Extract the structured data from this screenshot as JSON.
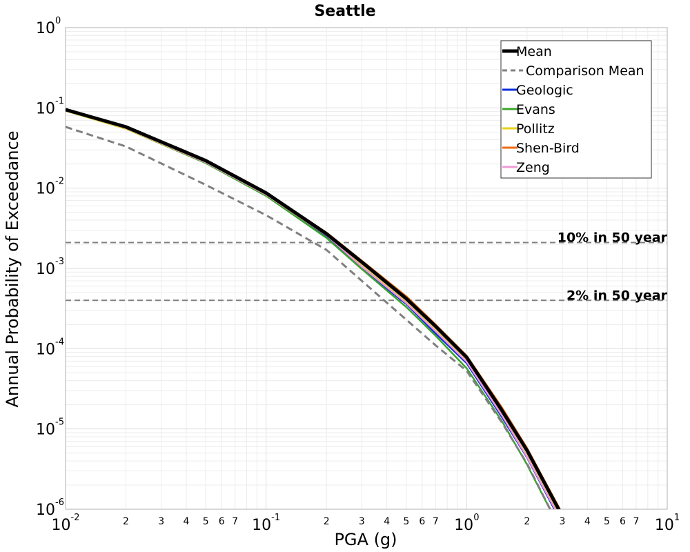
{
  "chart_data": {
    "type": "line",
    "title": "Seattle",
    "xlabel": "PGA (g)",
    "ylabel": "Annual Probability of Exceedance",
    "xscale": "log",
    "yscale": "log",
    "xlim": [
      0.01,
      10
    ],
    "ylim": [
      1e-06,
      1
    ],
    "grid": true,
    "legend_position": "top-right",
    "x_major_ticks": [
      {
        "base": "10",
        "exp": "-2"
      },
      {
        "base": "10",
        "exp": "-1"
      },
      {
        "base": "10",
        "exp": "0"
      },
      {
        "base": "10",
        "exp": "1"
      }
    ],
    "y_major_ticks": [
      {
        "base": "10",
        "exp": "0"
      },
      {
        "base": "10",
        "exp": "-1"
      },
      {
        "base": "10",
        "exp": "-2"
      },
      {
        "base": "10",
        "exp": "-3"
      },
      {
        "base": "10",
        "exp": "-4"
      },
      {
        "base": "10",
        "exp": "-5"
      },
      {
        "base": "10",
        "exp": "-6"
      }
    ],
    "x_minor_tick_labels": [
      "2",
      "3",
      "4",
      "5",
      "6",
      "7"
    ],
    "x": [
      0.01,
      0.02,
      0.05,
      0.1,
      0.2,
      0.3,
      0.5,
      0.7,
      1.0,
      1.5,
      2.0,
      3.0
    ],
    "series": [
      {
        "name": "Mean",
        "color": "#000000",
        "style": "solid",
        "width": 5,
        "values": [
          0.095,
          0.058,
          0.022,
          0.0087,
          0.0027,
          0.0012,
          0.00042,
          0.00019,
          7.8e-05,
          1.7e-05,
          5.4e-06,
          8.2e-07
        ]
      },
      {
        "name": "Comparison Mean",
        "color": "#808080",
        "style": "dashed",
        "width": 3,
        "values": [
          0.058,
          0.033,
          0.011,
          0.0046,
          0.0017,
          0.0007,
          0.00023,
          0.00011,
          5.3e-05,
          1.2e-05,
          3.7e-06,
          5e-07
        ]
      },
      {
        "name": "Geologic",
        "color": "#0a2bdc",
        "style": "solid",
        "width": 2.5,
        "values": [
          0.093,
          0.056,
          0.021,
          0.0082,
          0.0025,
          0.001,
          0.00036,
          0.000155,
          6.6e-05,
          1.4e-05,
          4.4e-06,
          6.5e-07
        ]
      },
      {
        "name": "Evans",
        "color": "#3aa52a",
        "style": "solid",
        "width": 2.5,
        "values": [
          0.092,
          0.055,
          0.0205,
          0.008,
          0.0024,
          0.00098,
          0.00033,
          0.000145,
          5.7e-05,
          1.25e-05,
          3.6e-06,
          5e-07
        ]
      },
      {
        "name": "Pollitz",
        "color": "#e8d21a",
        "style": "solid",
        "width": 2.5,
        "values": [
          0.092,
          0.055,
          0.021,
          0.0083,
          0.0026,
          0.00108,
          0.00038,
          0.00017,
          7e-05,
          1.5e-05,
          4.6e-06,
          7e-07
        ]
      },
      {
        "name": "Shen-Bird",
        "color": "#ee6a14",
        "style": "solid",
        "width": 2.5,
        "values": [
          0.095,
          0.058,
          0.022,
          0.0088,
          0.0028,
          0.00125,
          0.00045,
          0.0002,
          8.2e-05,
          1.85e-05,
          5.8e-06,
          8.8e-07
        ]
      },
      {
        "name": "Zeng",
        "color": "#f09ad8",
        "style": "solid",
        "width": 2.5,
        "values": [
          0.093,
          0.056,
          0.021,
          0.0083,
          0.0026,
          0.00105,
          0.00037,
          0.000165,
          6.9e-05,
          1.48e-05,
          4.5e-06,
          6.8e-07
        ]
      }
    ],
    "reference_lines": [
      {
        "label": "10% in 50 year",
        "y": 0.0021
      },
      {
        "label": "2% in 50 year",
        "y": 0.0004
      }
    ]
  }
}
